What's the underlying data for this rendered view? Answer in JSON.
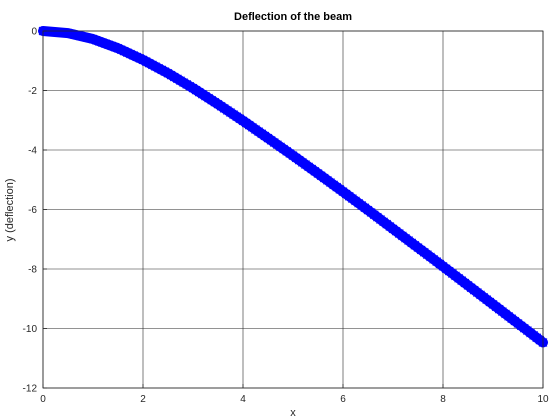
{
  "chart_data": {
    "type": "line",
    "title": "Deflection of the beam",
    "xlabel": "x",
    "ylabel": "y (deflection)",
    "xlim": [
      0,
      10
    ],
    "ylim": [
      -12,
      0
    ],
    "xticks": [
      0,
      2,
      4,
      6,
      8,
      10
    ],
    "yticks": [
      0,
      -2,
      -4,
      -6,
      -8,
      -10,
      -12
    ],
    "grid": true,
    "series": [
      {
        "color": "#0000ff",
        "marker": "x",
        "x": [
          0,
          0.5,
          1,
          1.5,
          2,
          2.5,
          3,
          3.5,
          4,
          4.5,
          5,
          5.5,
          6,
          6.5,
          7,
          7.5,
          8,
          8.5,
          9,
          9.5,
          10
        ],
        "y": [
          0,
          -0.07,
          -0.27,
          -0.58,
          -0.97,
          -1.42,
          -1.92,
          -2.46,
          -3.02,
          -3.6,
          -4.19,
          -4.79,
          -5.4,
          -6.02,
          -6.65,
          -7.28,
          -7.91,
          -8.55,
          -9.19,
          -9.83,
          -10.47
        ]
      }
    ]
  }
}
